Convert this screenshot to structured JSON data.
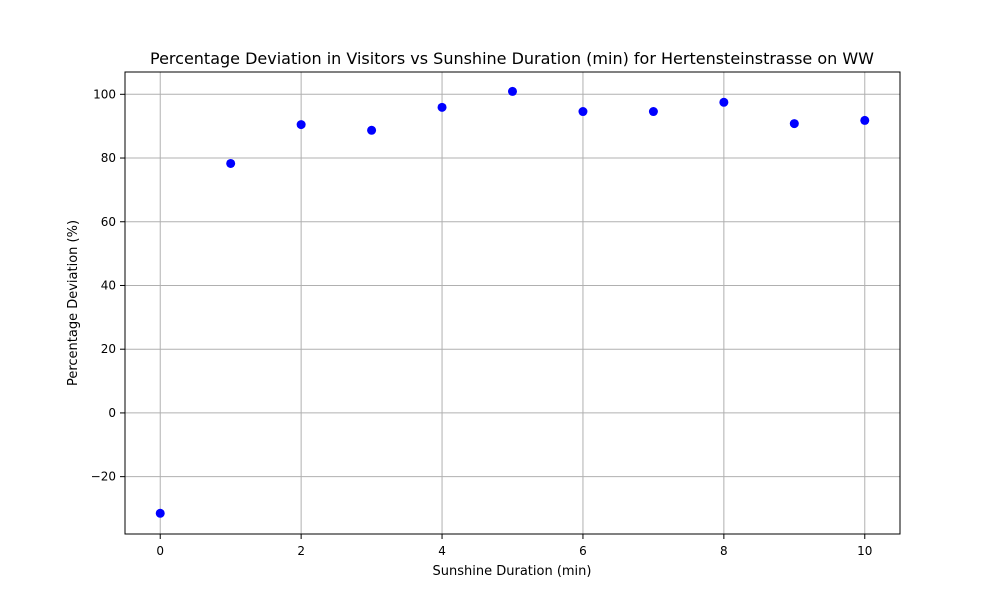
{
  "chart_data": {
    "type": "scatter",
    "title": "Percentage Deviation in Visitors vs Sunshine Duration (min) for Hertensteinstrasse on WW",
    "xlabel": "Sunshine Duration (min)",
    "ylabel": "Percentage Deviation (%)",
    "x": [
      0,
      1,
      2,
      3,
      4,
      5,
      6,
      7,
      8,
      9,
      10
    ],
    "y": [
      -31.5,
      78.3,
      90.5,
      88.7,
      95.9,
      100.9,
      94.6,
      94.6,
      97.5,
      90.8,
      91.8
    ],
    "xlim": [
      -0.5,
      10.5
    ],
    "ylim": [
      -38,
      107
    ],
    "xticks": [
      0,
      2,
      4,
      6,
      8,
      10
    ],
    "yticks": [
      -20,
      0,
      20,
      40,
      60,
      80,
      100
    ],
    "xtick_labels": [
      "0",
      "2",
      "4",
      "6",
      "8",
      "10"
    ],
    "ytick_labels": [
      "−20",
      "0",
      "20",
      "40",
      "60",
      "80",
      "100"
    ],
    "grid": true,
    "marker_color": "#0000ff",
    "grid_color": "#b0b0b0"
  }
}
